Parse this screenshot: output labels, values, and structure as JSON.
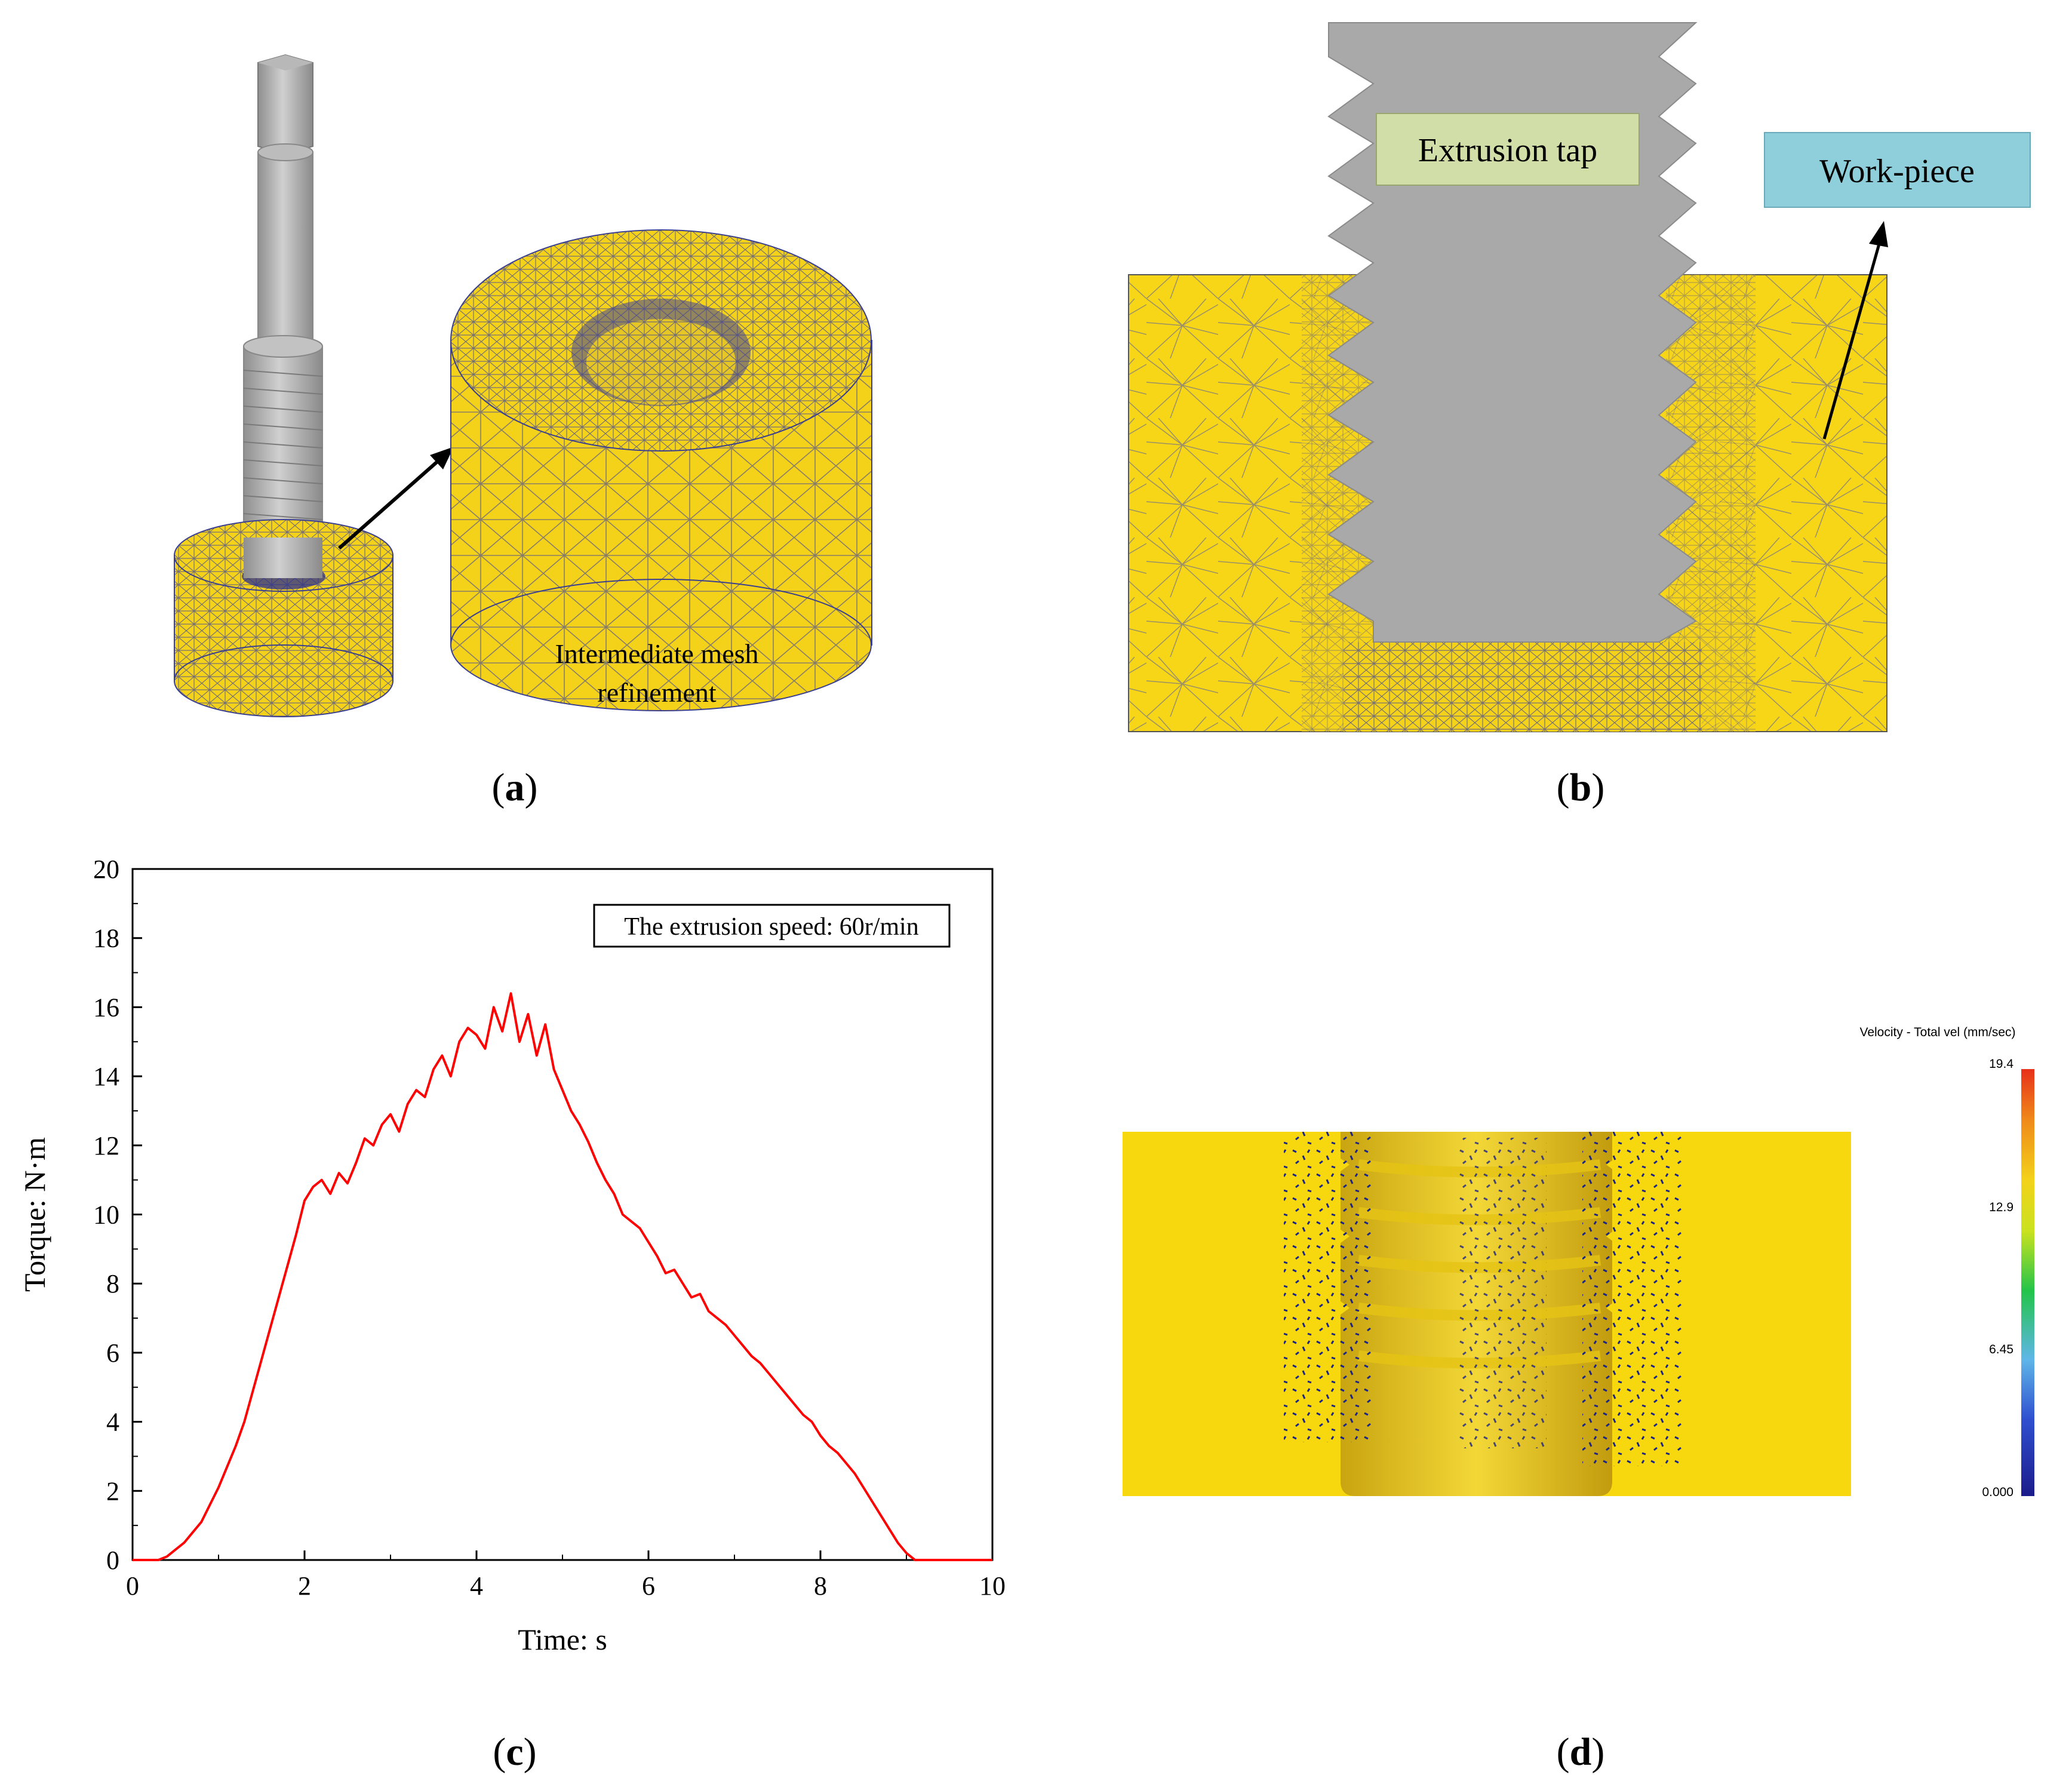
{
  "panels": {
    "a": {
      "label": "a",
      "annotation_line1": "Intermediate mesh",
      "annotation_line2": "refinement"
    },
    "b": {
      "label": "b",
      "tap_label": "Extrusion tap",
      "workpiece_label": "Work-piece"
    },
    "c": {
      "label": "c"
    },
    "d": {
      "label": "d",
      "legend_title": "Velocity - Total vel (mm/sec)",
      "legend_ticks": [
        "19.4",
        "12.9",
        "6.45",
        "0.000"
      ]
    }
  },
  "colors": {
    "mesh_yellow": "#f5d21a",
    "mesh_line": "#3a3f8f",
    "tap_gray": "#a9a9a9",
    "curve_red": "#ff0000",
    "tap_label_bg": "#d2dea8",
    "workpiece_label_bg": "#8fcfdc"
  },
  "chart_data": {
    "type": "line",
    "title": "",
    "annotation": "The extrusion speed: 60r/min",
    "xlabel": "Time: s",
    "ylabel": "Torque: N·m",
    "xlim": [
      0,
      10
    ],
    "ylim": [
      0,
      20
    ],
    "xticks": [
      0,
      2,
      4,
      6,
      8,
      10
    ],
    "yticks": [
      0,
      2,
      4,
      6,
      8,
      10,
      12,
      14,
      16,
      18,
      20
    ],
    "series": [
      {
        "x": [
          0,
          0.3,
          0.4,
          0.5,
          0.6,
          0.7,
          0.8,
          0.9,
          1.0,
          1.1,
          1.2,
          1.3,
          1.4,
          1.5,
          1.6,
          1.7,
          1.8,
          1.9,
          2.0,
          2.1,
          2.2,
          2.3,
          2.4,
          2.5,
          2.6,
          2.7,
          2.8,
          2.9,
          3.0,
          3.1,
          3.2,
          3.3,
          3.4,
          3.5,
          3.6,
          3.7,
          3.8,
          3.9,
          4.0,
          4.1,
          4.2,
          4.3,
          4.4,
          4.5,
          4.6,
          4.7,
          4.8,
          4.9,
          5.0,
          5.1,
          5.2,
          5.3,
          5.4,
          5.5,
          5.6,
          5.7,
          5.8,
          5.9,
          6.0,
          6.1,
          6.2,
          6.3,
          6.4,
          6.5,
          6.6,
          6.7,
          6.8,
          6.9,
          7.0,
          7.1,
          7.2,
          7.3,
          7.4,
          7.5,
          7.6,
          7.7,
          7.8,
          7.9,
          8.0,
          8.1,
          8.2,
          8.3,
          8.4,
          8.5,
          8.6,
          8.7,
          8.8,
          8.9,
          9.0,
          9.1,
          9.2,
          9.5,
          10.0
        ],
        "values": [
          0,
          0,
          0.1,
          0.3,
          0.5,
          0.8,
          1.1,
          1.6,
          2.1,
          2.7,
          3.3,
          4.0,
          4.9,
          5.8,
          6.7,
          7.6,
          8.5,
          9.4,
          10.4,
          10.8,
          11.0,
          10.6,
          11.2,
          10.9,
          11.5,
          12.2,
          12.0,
          12.6,
          12.9,
          12.4,
          13.2,
          13.6,
          13.4,
          14.2,
          14.6,
          14.0,
          15.0,
          15.4,
          15.2,
          14.8,
          16.0,
          15.3,
          16.4,
          15.0,
          15.8,
          14.6,
          15.5,
          14.2,
          13.6,
          13.0,
          12.6,
          12.1,
          11.5,
          11.0,
          10.6,
          10.0,
          9.8,
          9.6,
          9.2,
          8.8,
          8.3,
          8.4,
          8.0,
          7.6,
          7.7,
          7.2,
          7.0,
          6.8,
          6.5,
          6.2,
          5.9,
          5.7,
          5.4,
          5.1,
          4.8,
          4.5,
          4.2,
          4.0,
          3.6,
          3.3,
          3.1,
          2.8,
          2.5,
          2.1,
          1.7,
          1.3,
          0.9,
          0.5,
          0.2,
          0,
          0,
          0,
          0
        ]
      }
    ]
  }
}
